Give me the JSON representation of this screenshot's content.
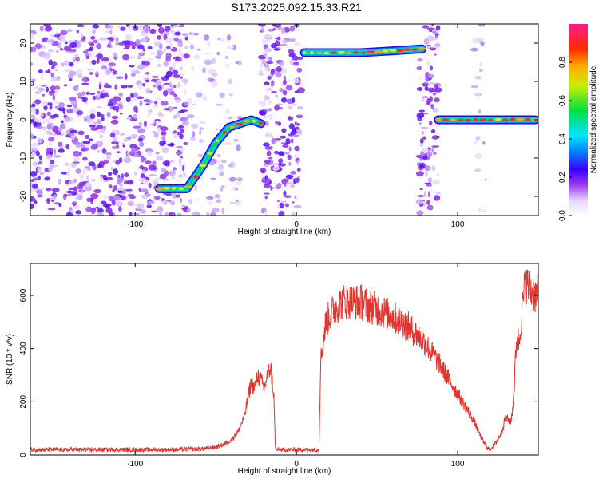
{
  "figure": {
    "title": "S173.2025.092.15.33.R21"
  },
  "chart_data": [
    {
      "type": "heatmap",
      "title": "S173.2025.092.15.33.R21",
      "xlabel": "Height of straight line (km)",
      "ylabel": "Frequency (Hz)",
      "xlim": [
        -165,
        150
      ],
      "ylim": [
        -25,
        25
      ],
      "x_ticks": [
        -100,
        0,
        100
      ],
      "x_tick_labels": [
        "-100",
        "0",
        "100"
      ],
      "y_ticks": [
        -20,
        -10,
        0,
        10,
        20
      ],
      "y_tick_labels": [
        "-20",
        "-10",
        "0",
        "10",
        "20"
      ],
      "grid": false,
      "colorbar": {
        "label": "Normalized spectral amplitude",
        "range": [
          0,
          1
        ],
        "ticks": [
          0.0,
          0.2,
          0.4,
          0.6,
          0.8
        ],
        "tick_labels": [
          "0.0",
          "0.2",
          "0.4",
          "0.6",
          "0.8"
        ],
        "colormap": "rainbow"
      },
      "noise_regions": [
        {
          "x": [
            -165,
            -68
          ],
          "density": "dense"
        },
        {
          "x": [
            -70,
            -35
          ],
          "density": "sparse"
        },
        {
          "x": [
            -22,
            3
          ],
          "density": "dense"
        },
        {
          "x": [
            76,
            88
          ],
          "density": "dense"
        },
        {
          "x": [
            110,
            118
          ],
          "density": "sparse"
        }
      ],
      "ridges": [
        {
          "x": [
            -85,
            -68,
            -58,
            -50,
            -42,
            -35,
            -28,
            -22
          ],
          "y": [
            -18,
            -18,
            -12,
            -6,
            -2,
            -1,
            0,
            -1
          ]
        },
        {
          "x": [
            5,
            20,
            40,
            60,
            78
          ],
          "y": [
            17.5,
            17.5,
            17.5,
            18,
            18.5
          ]
        },
        {
          "x": [
            88,
            110,
            130,
            148
          ],
          "y": [
            0,
            0,
            0,
            0
          ]
        }
      ]
    },
    {
      "type": "line",
      "xlabel": "Height of straight line (km)",
      "ylabel": "SNR (10 * v/v)",
      "xlim": [
        -165,
        150
      ],
      "ylim": [
        0,
        720
      ],
      "x_ticks": [
        -100,
        0,
        100
      ],
      "x_tick_labels": [
        "-100",
        "0",
        "100"
      ],
      "y_ticks": [
        0,
        200,
        400,
        600
      ],
      "y_tick_labels": [
        "0",
        "200",
        "400",
        "600"
      ],
      "grid": false,
      "line_color": "#e8322c",
      "series": [
        {
          "x": [
            -165,
            -120,
            -80,
            -60,
            -50,
            -45,
            -40,
            -36,
            -32,
            -30,
            -28,
            -26,
            -24,
            -22,
            -20,
            -18,
            -16,
            -14,
            -13,
            -12,
            -8,
            0,
            10,
            14,
            15,
            16,
            18,
            20,
            25,
            30,
            35,
            40,
            45,
            50,
            60,
            70,
            80,
            90,
            100,
            110,
            115,
            118,
            120,
            123,
            126,
            128,
            129,
            130,
            131,
            132,
            133,
            134,
            135,
            136,
            137,
            138,
            140,
            142,
            145,
            148,
            150
          ],
          "y": [
            20,
            20,
            20,
            22,
            30,
            40,
            60,
            90,
            150,
            220,
            270,
            250,
            300,
            280,
            250,
            300,
            330,
            220,
            20,
            20,
            20,
            20,
            20,
            20,
            350,
            400,
            490,
            520,
            560,
            580,
            575,
            575,
            560,
            550,
            520,
            480,
            420,
            330,
            230,
            130,
            60,
            30,
            20,
            40,
            70,
            100,
            130,
            140,
            135,
            130,
            125,
            170,
            250,
            380,
            450,
            420,
            550,
            650,
            620,
            600,
            610
          ]
        }
      ]
    }
  ]
}
